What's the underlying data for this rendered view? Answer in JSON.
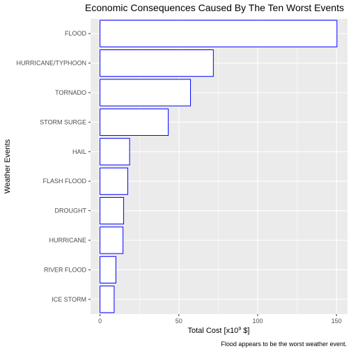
{
  "chart_data": {
    "type": "bar",
    "orientation": "horizontal",
    "title": "Economic Consequences Caused By The Ten Worst Events",
    "xlabel_prefix": "Total Cost [x10",
    "xlabel_superscript": "9",
    "xlabel_suffix": " $]",
    "ylabel": "Weather Events",
    "caption": "Flood appears to be the worst weather event.",
    "categories": [
      "FLOOD",
      "HURRICANE/TYPHOON",
      "TORNADO",
      "STORM SURGE",
      "HAIL",
      "FLASH FLOOD",
      "DROUGHT",
      "HURRICANE",
      "RIVER FLOOD",
      "ICE STORM"
    ],
    "values": [
      150.3,
      71.9,
      57.4,
      43.3,
      18.8,
      17.6,
      15.0,
      14.6,
      10.1,
      8.97
    ],
    "xlim": [
      -6,
      157
    ],
    "x_ticks": [
      0,
      50,
      100,
      150
    ],
    "x_tick_labels": [
      "0",
      "50",
      "100",
      "150"
    ],
    "grid": true,
    "colors": {
      "panel_background": "#ebebeb",
      "bar_fill": "#ffffff",
      "bar_outline": "#0000ff"
    }
  }
}
